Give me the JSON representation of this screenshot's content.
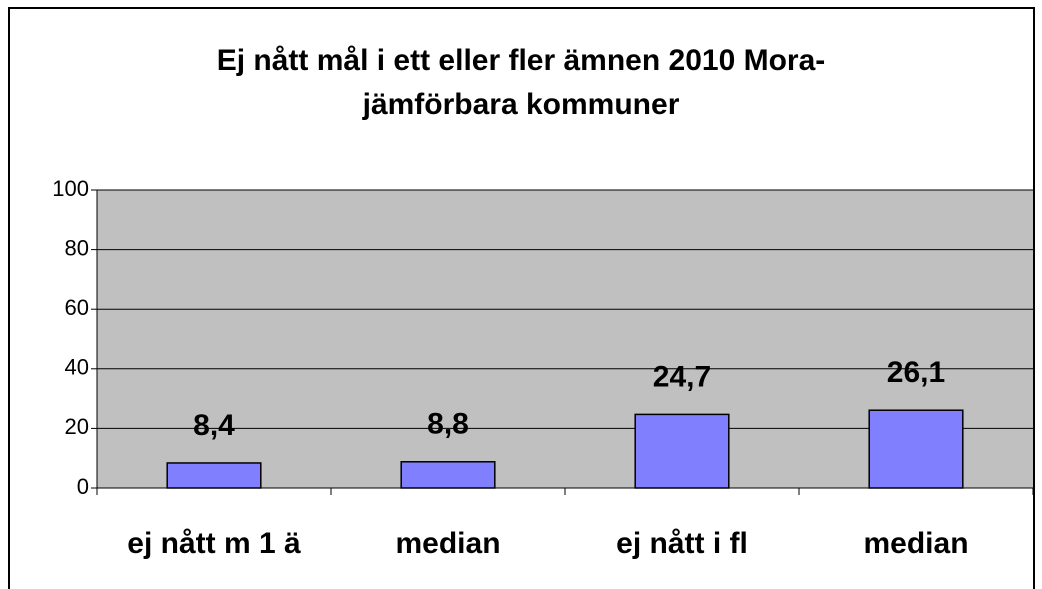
{
  "chart_data": {
    "type": "bar",
    "title": [
      "Ej nått mål i ett eller fler ämnen 2010 Mora-",
      "jämförbara kommuner"
    ],
    "categories": [
      "ej nått m 1 ä",
      "median",
      "ej nått i fl",
      "median"
    ],
    "values": [
      8.4,
      8.8,
      24.7,
      26.1
    ],
    "value_labels": [
      "8,4",
      "8,8",
      "24,7",
      "26,1"
    ],
    "color": "#8080ff",
    "ylim": [
      0,
      100
    ],
    "yticks": [
      0,
      20,
      40,
      60,
      80,
      100
    ],
    "grid": true
  }
}
